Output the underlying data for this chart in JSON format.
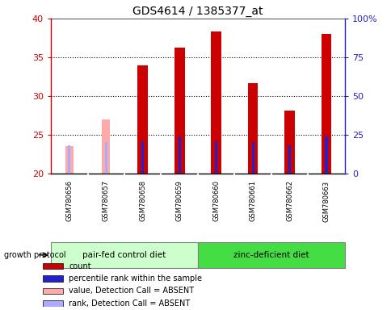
{
  "title": "GDS4614 / 1385377_at",
  "samples": [
    "GSM780656",
    "GSM780657",
    "GSM780658",
    "GSM780659",
    "GSM780660",
    "GSM780661",
    "GSM780662",
    "GSM780663"
  ],
  "count_values": [
    null,
    null,
    34.0,
    36.3,
    38.3,
    31.7,
    28.1,
    38.0
  ],
  "rank_values": [
    null,
    null,
    24.2,
    24.8,
    24.2,
    24.1,
    23.7,
    24.8
  ],
  "absent_value_values": [
    23.5,
    27.0,
    null,
    null,
    null,
    null,
    null,
    null
  ],
  "absent_rank_values": [
    23.7,
    24.1,
    null,
    null,
    null,
    null,
    null,
    null
  ],
  "ylim": [
    20,
    40
  ],
  "yticks": [
    20,
    25,
    30,
    35,
    40
  ],
  "right_yticks": [
    0,
    25,
    50,
    75,
    100
  ],
  "groups": [
    {
      "label": "pair-fed control diet",
      "start": 0,
      "end": 4,
      "color": "#ccffcc"
    },
    {
      "label": "zinc-deficient diet",
      "start": 4,
      "end": 8,
      "color": "#44dd44"
    }
  ],
  "count_color": "#cc0000",
  "rank_color": "#2222cc",
  "absent_value_color": "#ffaaaa",
  "absent_rank_color": "#aaaaff",
  "bg_color": "#c8c8c8",
  "plot_bg": "#ffffff",
  "left_axis_color": "#cc0000",
  "right_axis_color": "#2222cc",
  "legend_items": [
    {
      "label": "count",
      "color": "#cc0000"
    },
    {
      "label": "percentile rank within the sample",
      "color": "#2222cc"
    },
    {
      "label": "value, Detection Call = ABSENT",
      "color": "#ffaaaa"
    },
    {
      "label": "rank, Detection Call = ABSENT",
      "color": "#aaaaff"
    }
  ],
  "growth_protocol_label": "growth protocol"
}
